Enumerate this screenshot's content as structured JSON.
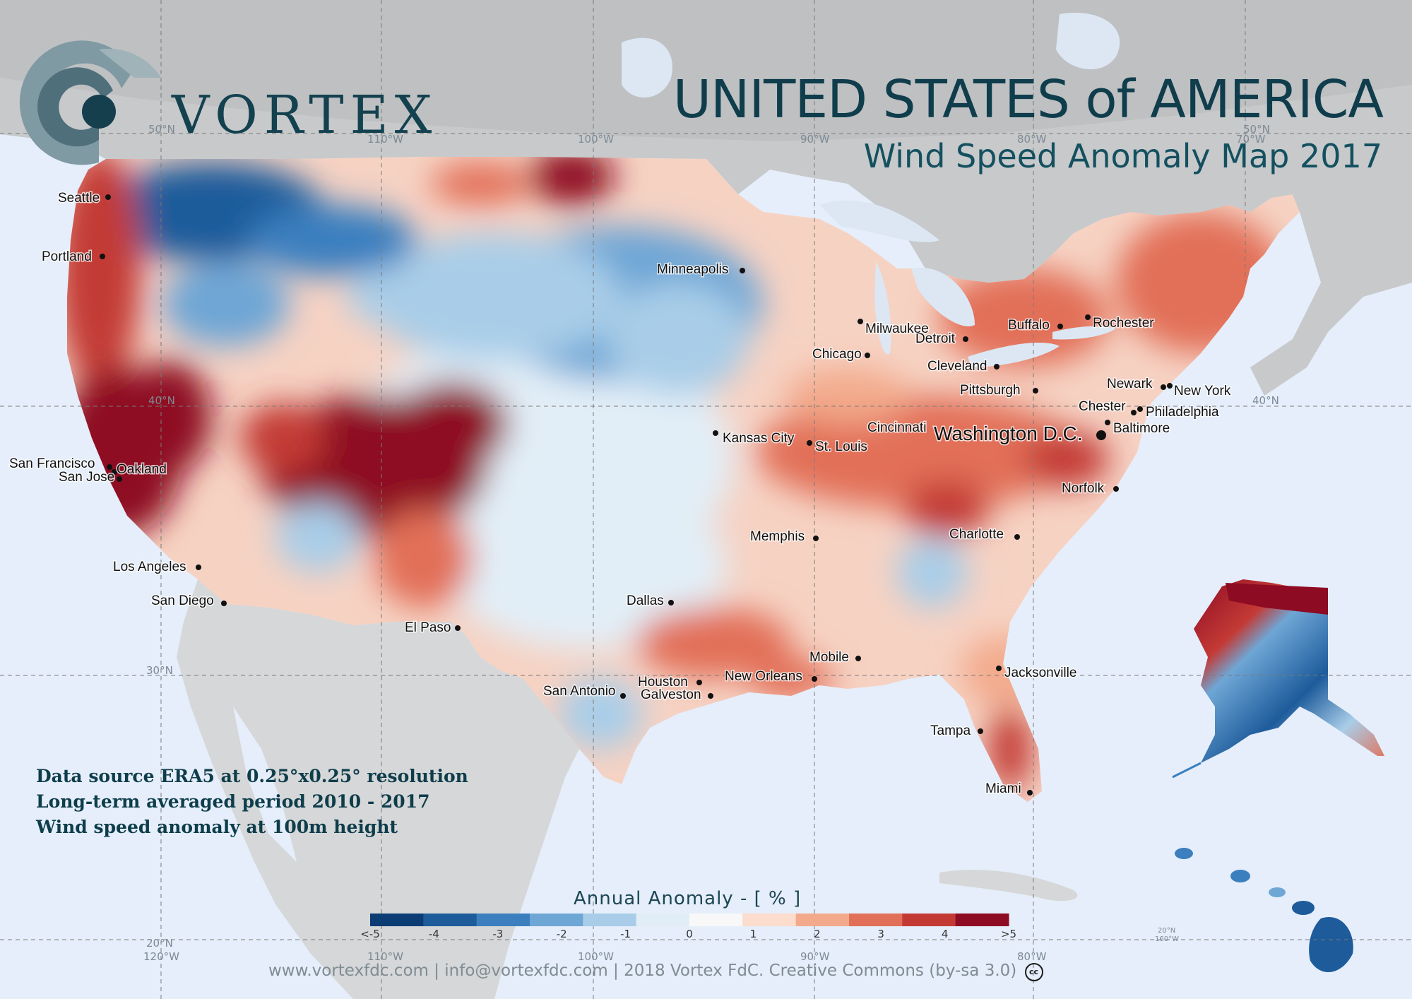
{
  "brand": {
    "name": "VORTEX"
  },
  "title": {
    "main": "UNITED STATES of AMERICA",
    "sub": "Wind Speed Anomaly Map 2017"
  },
  "notes": [
    "Data source ERA5 at 0.25°x0.25°  resolution",
    "Long-term averaged period 2010 - 2017",
    "Wind  speed anomaly at 100m height"
  ],
  "legend": {
    "title": "Annual Anomaly  - [ % ]",
    "ticks": [
      "<-5",
      "-4",
      "-3",
      "-2",
      "-1",
      "0",
      "1",
      "2",
      "3",
      "4",
      ">5"
    ],
    "colors": [
      "#0b3c74",
      "#1d5b9b",
      "#3b7fbf",
      "#6ea6d5",
      "#a9cde8",
      "#e2eef7",
      "#f8f8f8",
      "#fbdccd",
      "#f3aa8c",
      "#e27058",
      "#c33a35",
      "#8e0b24"
    ]
  },
  "grid": {
    "lon_labels": [
      "120°W",
      "110°W",
      "100°W",
      "90°W",
      "80°W",
      "70°W"
    ],
    "lat_labels": [
      "50°N",
      "40°N",
      "30°N",
      "20°N"
    ],
    "small_labels": [
      "50°N",
      "120°W",
      "20°N",
      "160°W"
    ]
  },
  "cities": [
    {
      "name": "Seattle"
    },
    {
      "name": "Portland"
    },
    {
      "name": "San Francisco"
    },
    {
      "name": "Oakland"
    },
    {
      "name": "San Jose"
    },
    {
      "name": "Los Angeles"
    },
    {
      "name": "San Diego"
    },
    {
      "name": "El Paso"
    },
    {
      "name": "Minneapolis"
    },
    {
      "name": "Kansas City"
    },
    {
      "name": "St. Louis"
    },
    {
      "name": "Memphis"
    },
    {
      "name": "Dallas"
    },
    {
      "name": "Houston"
    },
    {
      "name": "Galveston"
    },
    {
      "name": "San Antonio"
    },
    {
      "name": "New Orleans"
    },
    {
      "name": "Mobile"
    },
    {
      "name": "Jacksonville"
    },
    {
      "name": "Tampa"
    },
    {
      "name": "Miami"
    },
    {
      "name": "Charlotte"
    },
    {
      "name": "Norfolk"
    },
    {
      "name": "Baltimore"
    },
    {
      "name": "Philadelphia"
    },
    {
      "name": "Chester"
    },
    {
      "name": "New York"
    },
    {
      "name": "Newark"
    },
    {
      "name": "Pittsburgh"
    },
    {
      "name": "Cleveland"
    },
    {
      "name": "Detroit"
    },
    {
      "name": "Chicago"
    },
    {
      "name": "Milwaukee"
    },
    {
      "name": "Buffalo"
    },
    {
      "name": "Rochester"
    },
    {
      "name": "Cincinnati"
    }
  ],
  "capital": {
    "name": "Washington D.C."
  },
  "footer": {
    "text": "www.vortexfdc.com | info@vortexfdc.com | 2018 Vortex FdC. Creative Commons (by-sa 3.0)",
    "cc": "cc"
  }
}
